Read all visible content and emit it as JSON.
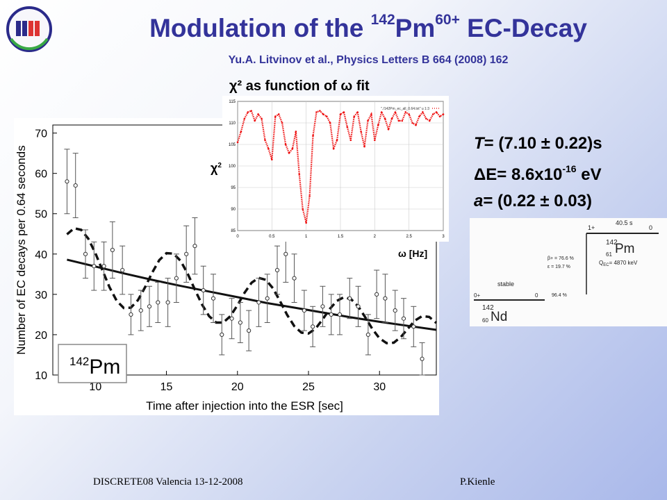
{
  "slide": {
    "title_main": "Modulation of the ",
    "title_mass": "142",
    "title_element": "Pm",
    "title_charge": "60+",
    "title_tail": " EC-Decay",
    "subtitle": "Yu.A. Litvinov et al., Physics Letters B 664 (2008) 162",
    "inset_title": "χ² as function of ω fit",
    "chi_label": "χ",
    "chi_sup": "2",
    "omega_label": "ω [Hz]",
    "result_T_label": "T",
    "result_T_value": "= (7.10 ± 0.22)s",
    "result_dE_pre": "ΔE= 8.6x10",
    "result_dE_exp": "-16",
    "result_dE_unit": " eV",
    "result_a_label": "a",
    "result_a_value": "= (0.22 ± 0.03)",
    "footer_left": "DISCRETE08 Valencia 13-12-2008",
    "footer_right": "P.Kienle"
  },
  "level_scheme": {
    "top_spin": "1+",
    "top_right": "0",
    "halflife": "40.5 s",
    "parent_mass": "142",
    "parent_symbol": "Pm",
    "parent_z": "61",
    "q_value": "Q",
    "q_sub": "EC",
    "q_text": "= 4870 keV",
    "beta_branch": "β+ = 76.6 %",
    "ec_branch": "ε = 19.7 %",
    "stable": "stable",
    "ground_spin": "0+",
    "ground_right": "0",
    "ground_branch": "96.4 %",
    "daughter_mass": "142",
    "daughter_symbol": "Nd",
    "daughter_z": "60",
    "colors": {
      "line": "#222222",
      "text": "#222222"
    }
  },
  "chart_data": [
    {
      "type": "scatter",
      "title": "",
      "xlabel": "Time after injection into the ESR [sec]",
      "ylabel": "Number of EC decays per 0.64 seconds",
      "xlim": [
        7,
        34
      ],
      "ylim": [
        10,
        72
      ],
      "xticks": [
        10,
        15,
        20,
        25,
        30
      ],
      "yticks": [
        10,
        20,
        30,
        40,
        50,
        60,
        70
      ],
      "annotation_mass": "142",
      "annotation_symbol": "Pm",
      "points": [
        {
          "x": 8.0,
          "y": 58,
          "err": 8
        },
        {
          "x": 8.6,
          "y": 57,
          "err": 8
        },
        {
          "x": 9.3,
          "y": 40,
          "err": 6
        },
        {
          "x": 9.9,
          "y": 37,
          "err": 6
        },
        {
          "x": 10.6,
          "y": 37,
          "err": 6
        },
        {
          "x": 11.2,
          "y": 41,
          "err": 7
        },
        {
          "x": 11.9,
          "y": 36,
          "err": 6
        },
        {
          "x": 12.5,
          "y": 25,
          "err": 5
        },
        {
          "x": 13.2,
          "y": 26,
          "err": 5
        },
        {
          "x": 13.8,
          "y": 27,
          "err": 5
        },
        {
          "x": 14.4,
          "y": 28,
          "err": 5
        },
        {
          "x": 15.1,
          "y": 28,
          "err": 6
        },
        {
          "x": 15.7,
          "y": 34,
          "err": 6
        },
        {
          "x": 16.4,
          "y": 40,
          "err": 7
        },
        {
          "x": 17.0,
          "y": 42,
          "err": 7
        },
        {
          "x": 17.6,
          "y": 31,
          "err": 6
        },
        {
          "x": 18.3,
          "y": 29,
          "err": 6
        },
        {
          "x": 18.9,
          "y": 20,
          "err": 5
        },
        {
          "x": 19.6,
          "y": 24,
          "err": 5
        },
        {
          "x": 20.2,
          "y": 23,
          "err": 5
        },
        {
          "x": 20.8,
          "y": 21,
          "err": 5
        },
        {
          "x": 21.5,
          "y": 28,
          "err": 6
        },
        {
          "x": 22.1,
          "y": 29,
          "err": 6
        },
        {
          "x": 22.8,
          "y": 36,
          "err": 6
        },
        {
          "x": 23.4,
          "y": 40,
          "err": 7
        },
        {
          "x": 24.0,
          "y": 34,
          "err": 6
        },
        {
          "x": 24.7,
          "y": 26,
          "err": 5
        },
        {
          "x": 25.3,
          "y": 22,
          "err": 5
        },
        {
          "x": 26.0,
          "y": 27,
          "err": 5
        },
        {
          "x": 26.6,
          "y": 25,
          "err": 5
        },
        {
          "x": 27.2,
          "y": 25,
          "err": 5
        },
        {
          "x": 27.9,
          "y": 29,
          "err": 5
        },
        {
          "x": 28.5,
          "y": 27,
          "err": 5
        },
        {
          "x": 29.2,
          "y": 20,
          "err": 5
        },
        {
          "x": 29.8,
          "y": 30,
          "err": 6
        },
        {
          "x": 30.4,
          "y": 29,
          "err": 6
        },
        {
          "x": 31.1,
          "y": 26,
          "err": 5
        },
        {
          "x": 31.7,
          "y": 24,
          "err": 5
        },
        {
          "x": 32.4,
          "y": 22,
          "err": 5
        },
        {
          "x": 33.0,
          "y": 14,
          "err": 4
        }
      ],
      "fit_exp": {
        "style": "solid",
        "x": [
          8,
          10,
          12,
          14,
          16,
          18,
          20,
          22,
          24,
          26,
          28,
          30,
          32,
          34
        ],
        "y": [
          38.6,
          36.9,
          35.2,
          33.6,
          32.1,
          30.7,
          29.3,
          27.9,
          26.7,
          25.5,
          24.3,
          23.2,
          22.2,
          21.2
        ]
      },
      "fit_mod": {
        "style": "dashed",
        "x": [
          8.0,
          8.5,
          9.0,
          9.5,
          10.0,
          10.5,
          11.0,
          11.5,
          12.0,
          12.5,
          13.0,
          13.5,
          14.0,
          14.5,
          15.0,
          15.5,
          16.0,
          16.5,
          17.0,
          17.5,
          18.0,
          18.5,
          19.0,
          19.5,
          20.0,
          20.5,
          21.0,
          21.5,
          22.0,
          22.5,
          23.0,
          23.5,
          24.0,
          24.5,
          25.0,
          25.5,
          26.0,
          26.5,
          27.0,
          27.5,
          28.0,
          28.5,
          29.0,
          29.5,
          30.0,
          30.5,
          31.0,
          31.5,
          32.0,
          32.5,
          33.0,
          33.5,
          34.0
        ],
        "y": [
          44.9,
          46.4,
          46.0,
          43.8,
          40.2,
          35.9,
          31.7,
          28.4,
          26.6,
          26.7,
          28.6,
          31.8,
          35.4,
          38.5,
          40.2,
          40.1,
          38.3,
          35.1,
          31.2,
          27.5,
          24.6,
          23.0,
          23.0,
          24.6,
          27.3,
          30.4,
          32.9,
          34.1,
          33.6,
          31.5,
          28.3,
          24.9,
          22.1,
          20.5,
          20.3,
          21.5,
          23.8,
          26.4,
          28.4,
          29.3,
          28.8,
          27.0,
          24.3,
          21.4,
          19.1,
          17.9,
          18.0,
          19.4,
          21.5,
          23.5,
          24.6,
          24.4,
          22.9
        ]
      }
    },
    {
      "type": "line",
      "title": "χ² as function of ω fit",
      "xlabel": "ω [Hz]",
      "ylabel": "χ²",
      "xlim": [
        0,
        3
      ],
      "ylim": [
        85,
        115
      ],
      "xticks": [
        0,
        0.5,
        1,
        1.5,
        2,
        2.5,
        3
      ],
      "yticks": [
        85,
        90,
        95,
        100,
        105,
        110,
        115
      ],
      "legend": "\"./142Pm_ec_all_0.64.txt\" u 1:3",
      "grid": true,
      "series": [
        {
          "x": [
            0.0,
            0.05,
            0.1,
            0.15,
            0.2,
            0.25,
            0.3,
            0.35,
            0.4,
            0.45,
            0.5,
            0.55,
            0.6,
            0.65,
            0.7,
            0.75,
            0.8,
            0.85,
            0.9,
            0.95,
            1.0,
            1.05,
            1.1,
            1.15,
            1.2,
            1.25,
            1.3,
            1.35,
            1.4,
            1.45,
            1.5,
            1.55,
            1.6,
            1.65,
            1.7,
            1.75,
            1.8,
            1.85,
            1.9,
            1.95,
            2.0,
            2.05,
            2.1,
            2.15,
            2.2,
            2.25,
            2.3,
            2.35,
            2.4,
            2.45,
            2.5,
            2.55,
            2.6,
            2.65,
            2.7,
            2.75,
            2.8,
            2.85,
            2.9,
            2.95,
            3.0
          ],
          "y": [
            105.5,
            108.0,
            111.0,
            112.5,
            112.8,
            110.5,
            112.0,
            111.0,
            106.0,
            104.0,
            101.5,
            111.5,
            112.0,
            110.0,
            105.0,
            103.0,
            104.0,
            108.0,
            98.0,
            90.0,
            86.8,
            93.0,
            107.0,
            112.5,
            112.8,
            112.0,
            111.5,
            110.0,
            104.0,
            106.0,
            112.0,
            112.5,
            109.0,
            106.0,
            111.5,
            112.5,
            108.0,
            104.5,
            110.5,
            112.0,
            106.0,
            109.5,
            112.5,
            111.0,
            108.5,
            111.0,
            112.5,
            110.5,
            110.5,
            112.5,
            112.0,
            110.0,
            109.5,
            111.5,
            112.5,
            111.0,
            110.5,
            112.0,
            112.5,
            111.5,
            112.0
          ]
        }
      ]
    }
  ]
}
